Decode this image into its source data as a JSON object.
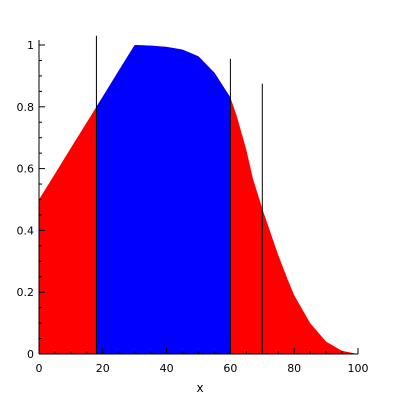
{
  "chart_data": {
    "type": "area",
    "title": "",
    "xlabel": "x",
    "ylabel": "",
    "xlim": [
      0,
      100
    ],
    "ylim": [
      0,
      1.03
    ],
    "grid": false,
    "x_ticks": [
      0,
      20,
      40,
      60,
      80,
      100
    ],
    "x_tick_labels": [
      "0",
      "20",
      "40",
      "60",
      "80",
      "100"
    ],
    "y_ticks": [
      0,
      0.2,
      0.4,
      0.6,
      0.8,
      1
    ],
    "y_tick_labels": [
      "0",
      "0.2",
      "0.4",
      "0.6",
      "0.8",
      "1"
    ],
    "series": [
      {
        "fill_color": "#ff0000",
        "x": [
          0,
          5,
          10,
          15,
          18,
          20,
          25,
          30,
          35,
          40,
          45,
          50,
          55,
          60,
          62,
          65,
          67,
          70,
          73,
          75,
          78,
          80,
          85,
          90,
          95,
          100
        ],
        "y": [
          0.5,
          0.583,
          0.667,
          0.75,
          0.8,
          0.833,
          0.917,
          1.0,
          0.998,
          0.994,
          0.985,
          0.963,
          0.91,
          0.83,
          0.77,
          0.66,
          0.57,
          0.47,
          0.38,
          0.32,
          0.24,
          0.19,
          0.1,
          0.04,
          0.01,
          0.0
        ]
      }
    ],
    "highlight_region": {
      "fill_color": "#0000ff",
      "x_start": 18,
      "x_end": 60
    },
    "vertical_lines": [
      {
        "x": 18,
        "y_top": 1.03
      },
      {
        "x": 60,
        "y_top": 0.955
      },
      {
        "x": 70,
        "y_top": 0.875
      }
    ]
  }
}
